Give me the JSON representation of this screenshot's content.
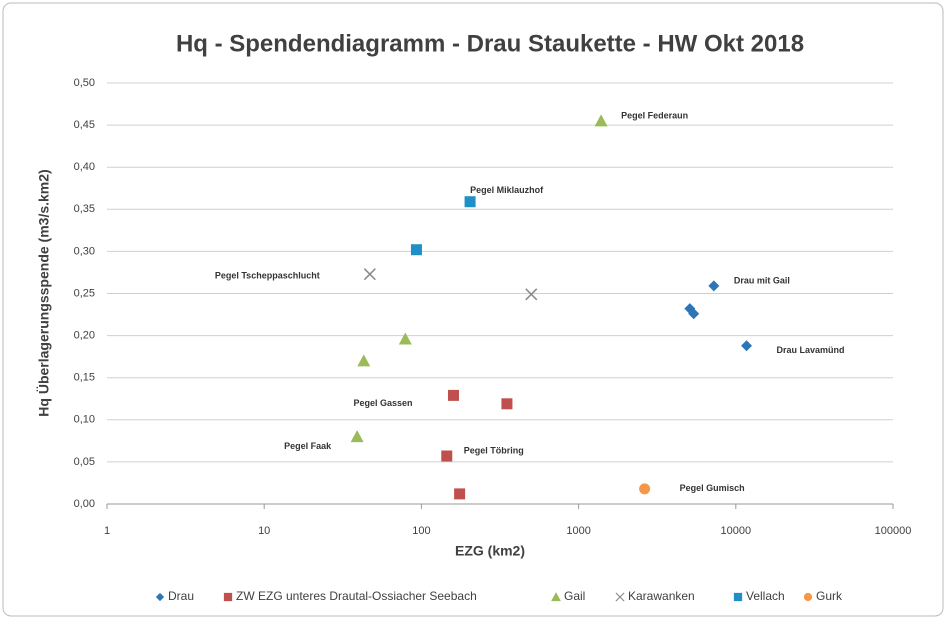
{
  "chart_data": {
    "type": "scatter",
    "title": "Hq - Spendendiagramm - Drau Staukette - HW Okt 2018",
    "x_label": "EZG (km2)",
    "y_label": "Hq Überlagerungsspende (m3/s.km2)",
    "x_log": true,
    "grid": true,
    "legend": "bottom",
    "xlim": [
      1,
      100000
    ],
    "xticks": [
      1,
      10,
      100,
      1000,
      10000,
      100000
    ],
    "ylim": [
      0,
      0.5
    ],
    "yticks": [
      {
        "value": 0,
        "label": "0,00"
      },
      {
        "value": 0.05,
        "label": "0,05"
      },
      {
        "value": 0.1,
        "label": "0,10"
      },
      {
        "value": 0.15,
        "label": "0,15"
      },
      {
        "value": 0.2,
        "label": "0,20"
      },
      {
        "value": 0.25,
        "label": "0,25"
      },
      {
        "value": 0.3,
        "label": "0,30"
      },
      {
        "value": 0.35,
        "label": "0,35"
      },
      {
        "value": 0.4,
        "label": "0,40"
      },
      {
        "value": 0.45,
        "label": "0,45"
      },
      {
        "value": 0.5,
        "label": "0,50"
      }
    ],
    "series": [
      {
        "name": "Drau",
        "color": "#2e75b6",
        "marker": "diamond",
        "x": [
          7250,
          5100,
          5400,
          11700
        ],
        "values": [
          0.259,
          0.232,
          0.226,
          0.188
        ],
        "point_labels": [
          "Drau mit Gail",
          null,
          null,
          "Drau Lavamünd"
        ]
      },
      {
        "name": "ZW EZG unteres Drautal-Ossiacher Seebach",
        "color": "#c0504d",
        "marker": "square",
        "x": [
          160,
          350,
          145,
          175
        ],
        "values": [
          0.129,
          0.119,
          0.057,
          0.012
        ],
        "point_labels": [
          "Pegel Gassen",
          null,
          "Pegel Töbring",
          null
        ]
      },
      {
        "name": "Gail",
        "color": "#9bbb59",
        "marker": "triangle",
        "x": [
          1390,
          79,
          43,
          39
        ],
        "values": [
          0.455,
          0.196,
          0.17,
          0.08
        ],
        "point_labels": [
          "Pegel Federaun",
          null,
          null,
          "Pegel Faak"
        ]
      },
      {
        "name": "Karawanken",
        "color": "#8c8c8c",
        "marker": "x",
        "x": [
          47,
          500
        ],
        "values": [
          0.273,
          0.249
        ],
        "point_labels": [
          "Pegel Tscheppaschlucht",
          null
        ]
      },
      {
        "name": "Vellach",
        "color": "#1f8fc6",
        "marker": "square",
        "x": [
          204,
          93
        ],
        "values": [
          0.359,
          0.302
        ],
        "point_labels": [
          "Pegel Miklauzhof",
          null
        ]
      },
      {
        "name": "Gurk",
        "color": "#f79646",
        "marker": "circle",
        "x": [
          2630
        ],
        "values": [
          0.018
        ],
        "point_labels": [
          "Pegel Gumisch"
        ]
      }
    ]
  }
}
